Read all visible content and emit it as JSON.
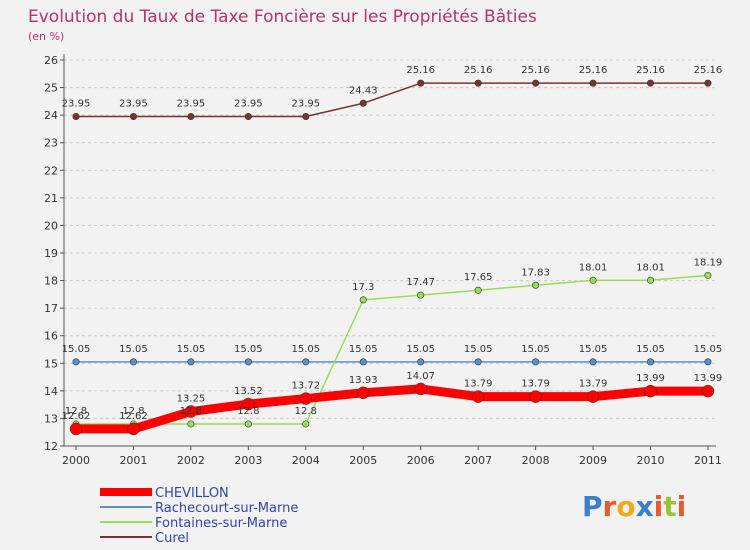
{
  "chart_data": {
    "type": "line",
    "title": "Evolution du Taux de Taxe Foncière sur les Propriétés Bâties",
    "subtitle": "(en %)",
    "categories": [
      "2000",
      "2001",
      "2002",
      "2003",
      "2004",
      "2005",
      "2006",
      "2007",
      "2008",
      "2009",
      "2010",
      "2011"
    ],
    "ylim": [
      12,
      26
    ],
    "yticks": [
      12,
      13,
      14,
      15,
      16,
      17,
      18,
      19,
      20,
      21,
      22,
      23,
      24,
      25,
      26
    ],
    "grid": "horizontal dashed",
    "series": [
      {
        "name": "CHEVILLON",
        "color": "#ff0000",
        "thick": true,
        "values": [
          12.62,
          12.62,
          13.25,
          13.52,
          13.72,
          13.93,
          14.07,
          13.79,
          13.79,
          13.79,
          13.99,
          13.99
        ],
        "labels": [
          "12.62",
          "12.62",
          "13.25",
          "13.52",
          "13.72",
          "13.93",
          "14.07",
          "13.79",
          "13.79",
          "13.79",
          "13.99",
          "13.99"
        ]
      },
      {
        "name": "Rachecourt-sur-Marne",
        "color": "#5b8fcf",
        "thick": false,
        "values": [
          15.05,
          15.05,
          15.05,
          15.05,
          15.05,
          15.05,
          15.05,
          15.05,
          15.05,
          15.05,
          15.05,
          15.05
        ],
        "labels": [
          "15.05",
          "15.05",
          "15.05",
          "15.05",
          "15.05",
          "15.05",
          "15.05",
          "15.05",
          "15.05",
          "15.05",
          "15.05",
          "15.05"
        ]
      },
      {
        "name": "Fontaines-sur-Marne",
        "color": "#99dd55",
        "thick": false,
        "values": [
          12.8,
          12.8,
          12.8,
          12.8,
          12.8,
          17.3,
          17.47,
          17.65,
          17.83,
          18.01,
          18.01,
          18.19
        ],
        "labels": [
          "12.8",
          "12.8",
          "12.8",
          "12.8",
          "12.8",
          "17.3",
          "17.47",
          "17.65",
          "17.83",
          "18.01",
          "18.01",
          "18.19"
        ]
      },
      {
        "name": "Curel",
        "color": "#7a3333",
        "thick": false,
        "values": [
          23.95,
          23.95,
          23.95,
          23.95,
          23.95,
          24.43,
          25.16,
          25.16,
          25.16,
          25.16,
          25.16,
          25.16
        ],
        "labels": [
          "23.95",
          "23.95",
          "23.95",
          "23.95",
          "23.95",
          "24.43",
          "25.16",
          "25.16",
          "25.16",
          "25.16",
          "25.16",
          "25.16"
        ]
      }
    ]
  },
  "logo": {
    "text": "Proxiti"
  }
}
